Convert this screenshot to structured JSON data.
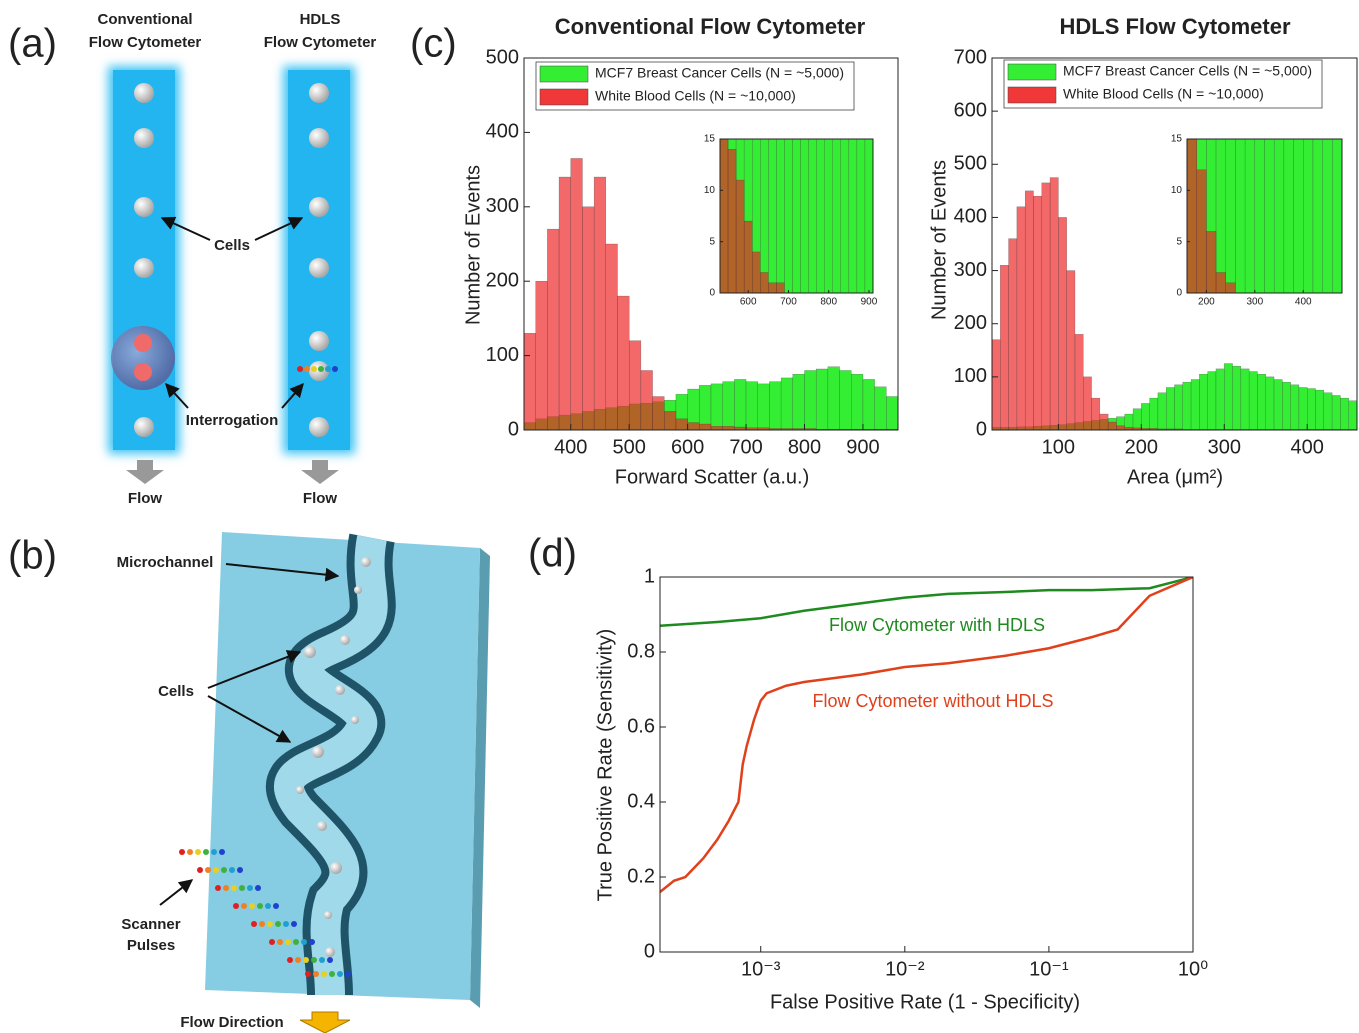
{
  "panel_labels": [
    "(a)",
    "(b)",
    "(c)",
    "(d)"
  ],
  "panel_a": {
    "columns": [
      {
        "title_lines": [
          "Conventional",
          "Flow Cytometer"
        ],
        "flow": "Flow"
      },
      {
        "title_lines": [
          "HDLS",
          "Flow Cytometer"
        ],
        "flow": "Flow"
      }
    ],
    "labels": [
      "Cells",
      "Interrogation"
    ]
  },
  "panel_b": {
    "microchannel": "Microchannel",
    "cells": "Cells",
    "scanner_lines": [
      "Scanner",
      "Pulses"
    ],
    "flow_direction": "Flow Direction"
  },
  "chart_data": [
    {
      "type": "histogram",
      "title": "Conventional Flow Cytometer",
      "x_label": "Forward Scatter (a.u.)",
      "y_label": "Number of Events",
      "bins": [
        320,
        340,
        360,
        380,
        400,
        420,
        440,
        460,
        480,
        500,
        520,
        540,
        560,
        580,
        600,
        620,
        640,
        660,
        680,
        700,
        720,
        740,
        760,
        780,
        800,
        820,
        840,
        860,
        880,
        900,
        920,
        940,
        960
      ],
      "series": [
        {
          "name": "MCF7 Breast Cancer Cells (N = ~5,000)",
          "color": "#33ee33",
          "values": [
            10,
            15,
            18,
            20,
            22,
            25,
            28,
            30,
            32,
            35,
            36,
            38,
            40,
            48,
            55,
            60,
            62,
            65,
            68,
            65,
            62,
            65,
            70,
            75,
            80,
            82,
            85,
            80,
            75,
            68,
            58,
            45
          ]
        },
        {
          "name": "White Blood Cells (N = ~10,000)",
          "color": "#ee2222",
          "values": [
            130,
            200,
            270,
            340,
            365,
            300,
            340,
            250,
            180,
            120,
            80,
            45,
            25,
            15,
            10,
            8,
            5,
            5,
            4,
            3,
            3,
            2,
            2,
            2,
            2,
            1,
            1,
            1,
            1,
            1,
            1,
            1
          ]
        }
      ],
      "xlim": [
        320,
        960
      ],
      "xticks": [
        400,
        500,
        600,
        700,
        800,
        900
      ],
      "ylim": [
        0,
        500
      ],
      "yticks": [
        0,
        100,
        200,
        300,
        400,
        500
      ]
    },
    {
      "type": "histogram",
      "bins": [
        530,
        550,
        570,
        590,
        610,
        630,
        650,
        670,
        690,
        710,
        730,
        750,
        770,
        790,
        810,
        830,
        850,
        870,
        890,
        910
      ],
      "series": [
        {
          "color": "#33ee33",
          "values": [
            40,
            45,
            50,
            55,
            60,
            62,
            65,
            68,
            65,
            60,
            65,
            70,
            75,
            80,
            82,
            85,
            80,
            75,
            70
          ]
        },
        {
          "color": "#ee2222",
          "values": [
            15,
            14,
            11,
            7,
            4,
            2,
            1,
            1,
            0,
            0,
            0,
            0,
            0,
            0,
            0,
            0,
            0,
            0,
            0
          ]
        }
      ],
      "xlim": [
        530,
        910
      ],
      "xticks": [
        600,
        700,
        800,
        900
      ],
      "ylim": [
        0,
        15
      ],
      "yticks": [
        0,
        5,
        10,
        15
      ]
    },
    {
      "type": "histogram",
      "title": "HDLS Flow Cytometer",
      "x_label": "Area (μm²)",
      "y_label": "Number of Events",
      "bins": [
        20,
        30,
        40,
        50,
        60,
        70,
        80,
        90,
        100,
        110,
        120,
        130,
        140,
        150,
        160,
        170,
        180,
        190,
        200,
        210,
        220,
        230,
        240,
        250,
        260,
        270,
        280,
        290,
        300,
        310,
        320,
        330,
        340,
        350,
        360,
        370,
        380,
        390,
        400,
        410,
        420,
        430,
        440,
        450,
        460
      ],
      "series": [
        {
          "name": "MCF7 Breast Cancer Cells (N = ~5,000)",
          "color": "#33ee33",
          "values": [
            5,
            5,
            5,
            6,
            6,
            7,
            8,
            9,
            10,
            12,
            14,
            16,
            18,
            20,
            22,
            25,
            30,
            40,
            50,
            60,
            70,
            80,
            85,
            90,
            95,
            105,
            110,
            115,
            125,
            120,
            115,
            110,
            105,
            100,
            95,
            90,
            85,
            80,
            78,
            75,
            70,
            65,
            60,
            55
          ]
        },
        {
          "name": "White Blood Cells (N = ~10,000)",
          "color": "#ee2222",
          "values": [
            170,
            310,
            360,
            420,
            450,
            440,
            465,
            475,
            400,
            300,
            180,
            100,
            60,
            30,
            15,
            8,
            5,
            4,
            3,
            3,
            2,
            2,
            2,
            1,
            1,
            1,
            1,
            1,
            1,
            1,
            1,
            1,
            1,
            1,
            1,
            1,
            1,
            1,
            1,
            1,
            1,
            1,
            1,
            1
          ]
        }
      ],
      "xlim": [
        20,
        460
      ],
      "xticks": [
        100,
        200,
        300,
        400
      ],
      "ylim": [
        0,
        700
      ],
      "yticks": [
        0,
        100,
        200,
        300,
        400,
        500,
        600,
        700
      ]
    },
    {
      "type": "histogram",
      "bins": [
        160,
        180,
        200,
        220,
        240,
        260,
        280,
        300,
        320,
        340,
        360,
        380,
        400,
        420,
        440,
        460,
        480
      ],
      "series": [
        {
          "color": "#33ee33",
          "values": [
            22,
            35,
            55,
            75,
            90,
            105,
            120,
            115,
            105,
            95,
            85,
            78,
            70,
            60,
            55,
            50
          ]
        },
        {
          "color": "#ee2222",
          "values": [
            15,
            12,
            6,
            2,
            1,
            0,
            0,
            0,
            0,
            0,
            0,
            0,
            0,
            0,
            0,
            0
          ]
        }
      ],
      "xlim": [
        160,
        480
      ],
      "xticks": [
        200,
        300,
        400
      ],
      "ylim": [
        0,
        15
      ],
      "yticks": [
        0,
        5,
        10,
        15
      ]
    },
    {
      "type": "line",
      "x_label": "False Positive Rate (1 - Specificity)",
      "y_label": "True Positive Rate (Sensitivity)",
      "xscale": "log",
      "series": [
        {
          "name": "Flow Cytometer with HDLS",
          "color": "#1f8a1f",
          "x": [
            0.0002,
            0.0005,
            0.001,
            0.002,
            0.005,
            0.01,
            0.02,
            0.05,
            0.1,
            0.2,
            0.5,
            1
          ],
          "values": [
            0.87,
            0.88,
            0.89,
            0.91,
            0.93,
            0.945,
            0.955,
            0.96,
            0.965,
            0.965,
            0.97,
            1
          ]
        },
        {
          "name": "Flow Cytometer without HDLS",
          "color": "#e0401a",
          "x": [
            0.0002,
            0.00025,
            0.0003,
            0.0004,
            0.0005,
            0.0006,
            0.0007,
            0.00075,
            0.0008,
            0.0009,
            0.001,
            0.0011,
            0.0015,
            0.002,
            0.005,
            0.01,
            0.02,
            0.05,
            0.1,
            0.2,
            0.3,
            0.5,
            1
          ],
          "values": [
            0.16,
            0.19,
            0.2,
            0.25,
            0.3,
            0.35,
            0.4,
            0.5,
            0.55,
            0.62,
            0.67,
            0.69,
            0.71,
            0.72,
            0.74,
            0.76,
            0.77,
            0.79,
            0.81,
            0.84,
            0.86,
            0.95,
            1
          ]
        }
      ],
      "xlim": [
        0.0002,
        1
      ],
      "xticks": [
        {
          "value": 0.001,
          "label": "10⁻³"
        },
        {
          "value": 0.01,
          "label": "10⁻²"
        },
        {
          "value": 0.1,
          "label": "10⁻¹"
        },
        {
          "value": 1,
          "label": "10⁰"
        }
      ],
      "ylim": [
        0,
        1
      ],
      "yticks": [
        0,
        0.2,
        0.4,
        0.6,
        0.8,
        1
      ]
    }
  ]
}
